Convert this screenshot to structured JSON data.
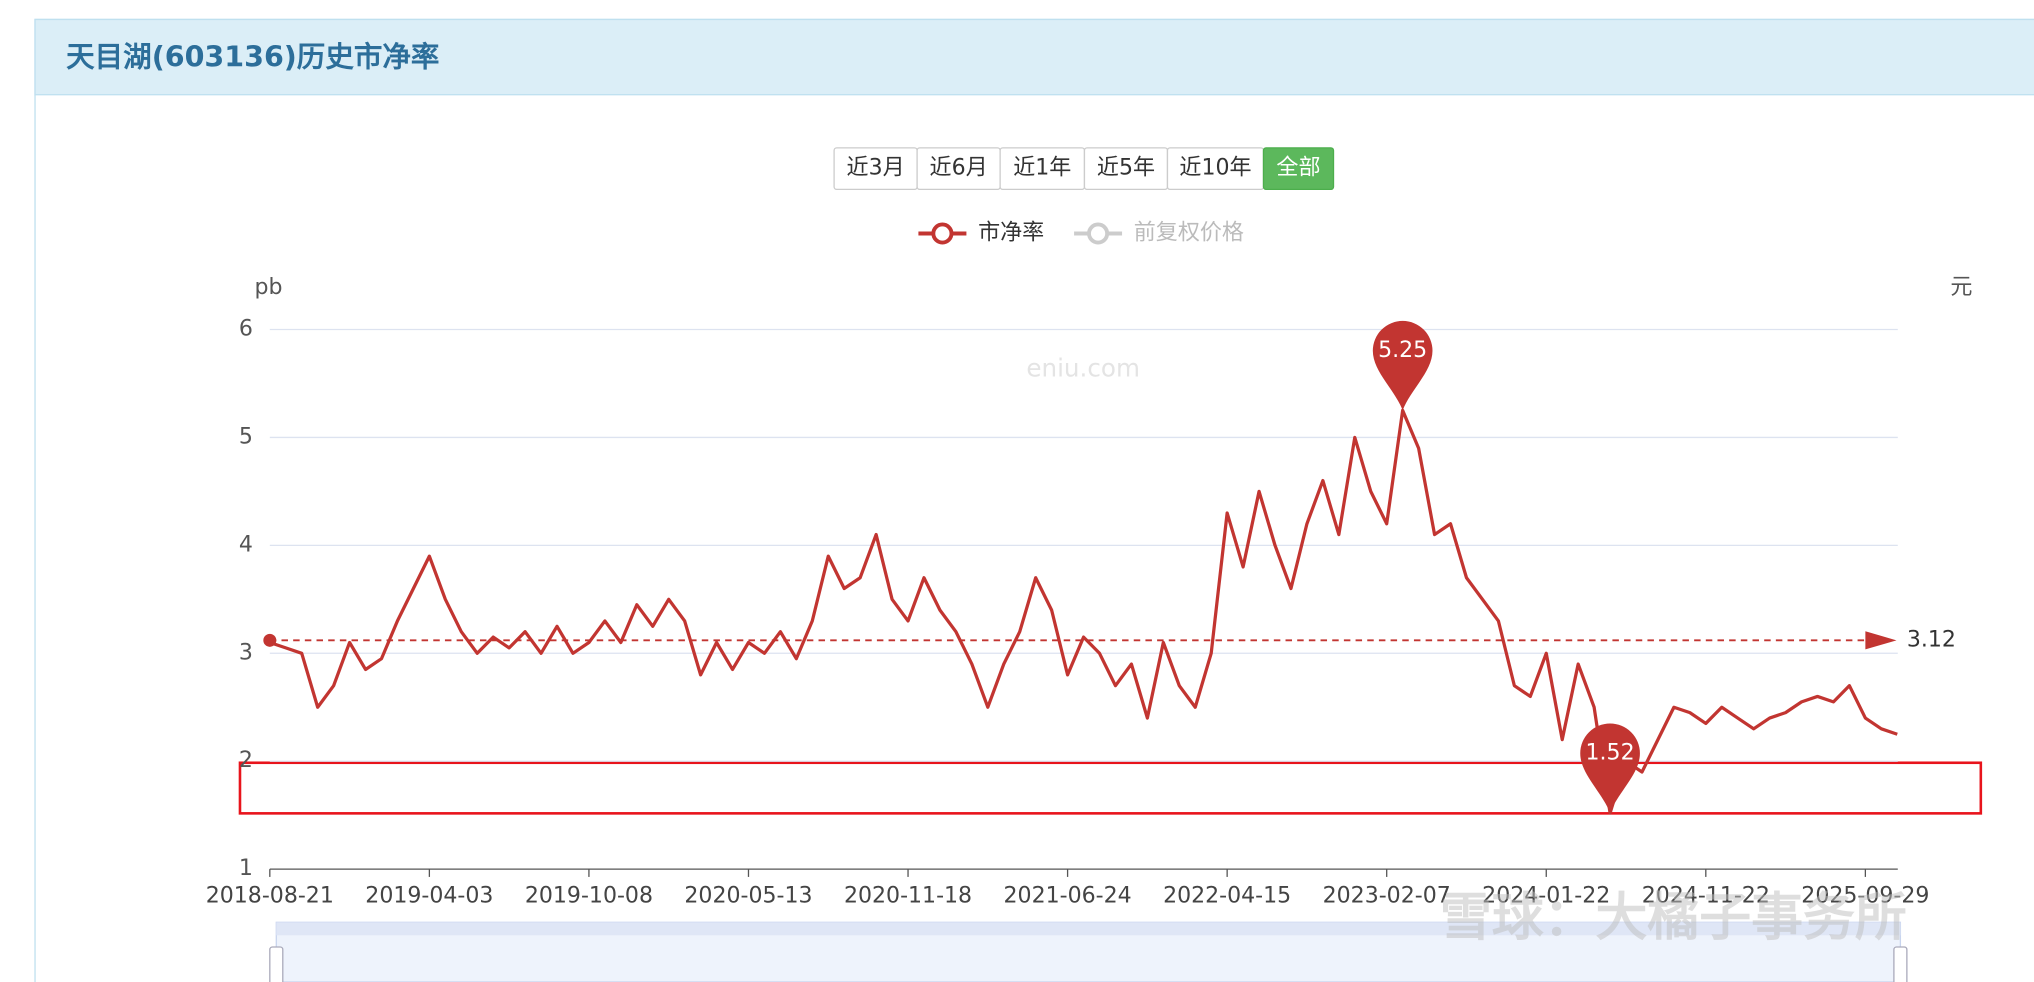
{
  "header": {
    "title": "天目湖(603136)历史市净率"
  },
  "range_buttons": [
    "近3月",
    "近6月",
    "近1年",
    "近5年",
    "近10年",
    "全部"
  ],
  "legend": [
    {
      "name": "市净率",
      "color": "#c23531"
    },
    {
      "name": "前复权价格",
      "color": "#cccccc"
    }
  ],
  "watermarks": [
    "eniu.com",
    "雪球：大橘子事务所"
  ],
  "chart_data": {
    "type": "line",
    "y_axis_name": "pb",
    "y2_axis_name": "元",
    "ylim": [
      1,
      6
    ],
    "yticks": [
      1,
      2,
      3,
      4,
      5,
      6
    ],
    "grid": true,
    "categories": [
      "2018-08-21",
      null,
      null,
      null,
      null,
      null,
      null,
      null,
      null,
      null,
      "2019-04-03",
      null,
      null,
      null,
      null,
      null,
      null,
      null,
      null,
      null,
      "2019-10-08",
      null,
      null,
      null,
      null,
      null,
      null,
      null,
      null,
      null,
      "2020-05-13",
      null,
      null,
      null,
      null,
      null,
      null,
      null,
      null,
      null,
      "2020-11-18",
      null,
      null,
      null,
      null,
      null,
      null,
      null,
      null,
      null,
      "2021-06-24",
      null,
      null,
      null,
      null,
      null,
      null,
      null,
      null,
      null,
      "2022-04-15",
      null,
      null,
      null,
      null,
      null,
      null,
      null,
      null,
      null,
      "2023-02-07",
      null,
      null,
      null,
      null,
      null,
      null,
      null,
      null,
      null,
      "2024-01-22",
      null,
      null,
      null,
      null,
      null,
      null,
      null,
      null,
      null,
      "2024-11-22",
      null,
      null,
      null,
      null,
      null,
      null,
      null,
      null,
      null,
      "2025-09-29",
      null,
      null
    ],
    "series": [
      {
        "name": "市净率",
        "color": "#c23531",
        "values": [
          3.1,
          3.05,
          3.0,
          2.5,
          2.7,
          3.1,
          2.85,
          2.95,
          3.3,
          3.6,
          3.9,
          3.5,
          3.2,
          3.0,
          3.15,
          3.05,
          3.2,
          3.0,
          3.25,
          3.0,
          3.1,
          3.3,
          3.1,
          3.45,
          3.25,
          3.5,
          3.3,
          2.8,
          3.1,
          2.85,
          3.1,
          3.0,
          3.2,
          2.95,
          3.3,
          3.9,
          3.6,
          3.7,
          4.1,
          3.5,
          3.3,
          3.7,
          3.4,
          3.2,
          2.9,
          2.5,
          2.9,
          3.2,
          3.7,
          3.4,
          2.8,
          3.15,
          3.0,
          2.7,
          2.9,
          2.4,
          3.1,
          2.7,
          2.5,
          3.0,
          4.3,
          3.8,
          4.5,
          4.0,
          3.6,
          4.2,
          4.6,
          4.1,
          5.0,
          4.5,
          4.2,
          5.25,
          4.9,
          4.1,
          4.2,
          3.7,
          3.5,
          3.3,
          2.7,
          2.6,
          3.0,
          2.2,
          2.9,
          2.5,
          1.52,
          2.0,
          1.9,
          2.2,
          2.5,
          2.45,
          2.35,
          2.5,
          2.4,
          2.3,
          2.4,
          2.45,
          2.55,
          2.6,
          2.55,
          2.7,
          2.4,
          2.3,
          2.25
        ]
      }
    ],
    "max": 5.25,
    "min": 1.52,
    "average": 3.12
  }
}
